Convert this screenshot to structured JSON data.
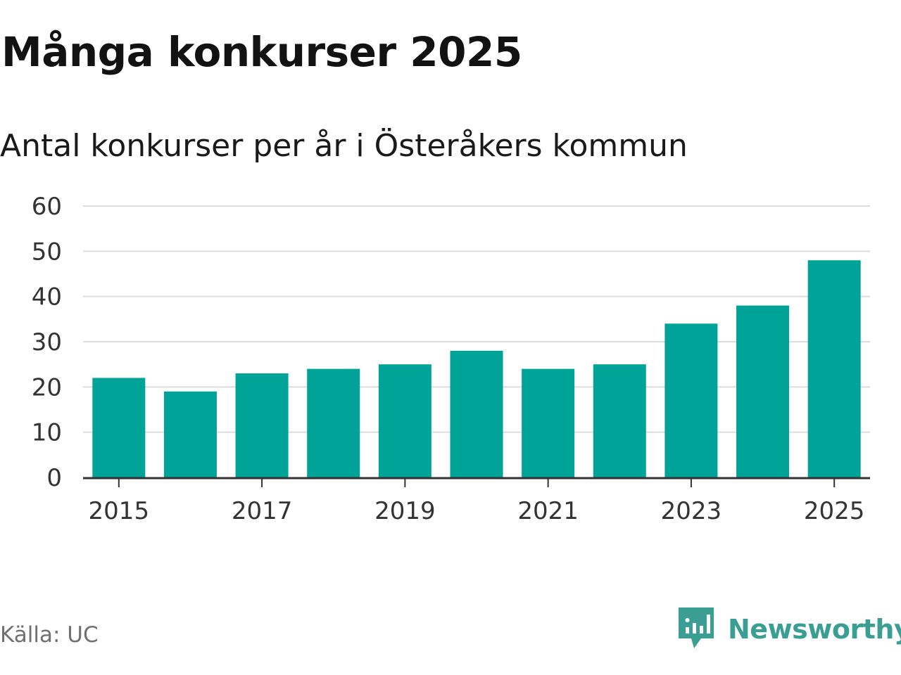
{
  "header": {
    "title": "Många konkurser 2025",
    "subtitle": "Antal konkurser per år i Österåkers kommun"
  },
  "footer": {
    "source": "Källa: UC",
    "brand": "Newsworthy"
  },
  "colors": {
    "bar": "#00a398",
    "grid": "#dcdcdc",
    "axis": "#333333",
    "brand": "#3a9e92"
  },
  "chart_data": {
    "type": "bar",
    "title": "Många konkurser 2025",
    "subtitle": "Antal konkurser per år i Österåkers kommun",
    "xlabel": "",
    "ylabel": "",
    "categories": [
      "2015",
      "2016",
      "2017",
      "2018",
      "2019",
      "2020",
      "2021",
      "2022",
      "2023",
      "2024",
      "2025"
    ],
    "values": [
      22,
      19,
      23,
      24,
      25,
      28,
      24,
      25,
      34,
      38,
      48
    ],
    "x_tick_labels": [
      "2015",
      "2017",
      "2019",
      "2021",
      "2023",
      "2025"
    ],
    "y_ticks": [
      0,
      10,
      20,
      30,
      40,
      50,
      60
    ],
    "ylim": [
      0,
      60
    ],
    "grid": true,
    "legend": "none"
  }
}
